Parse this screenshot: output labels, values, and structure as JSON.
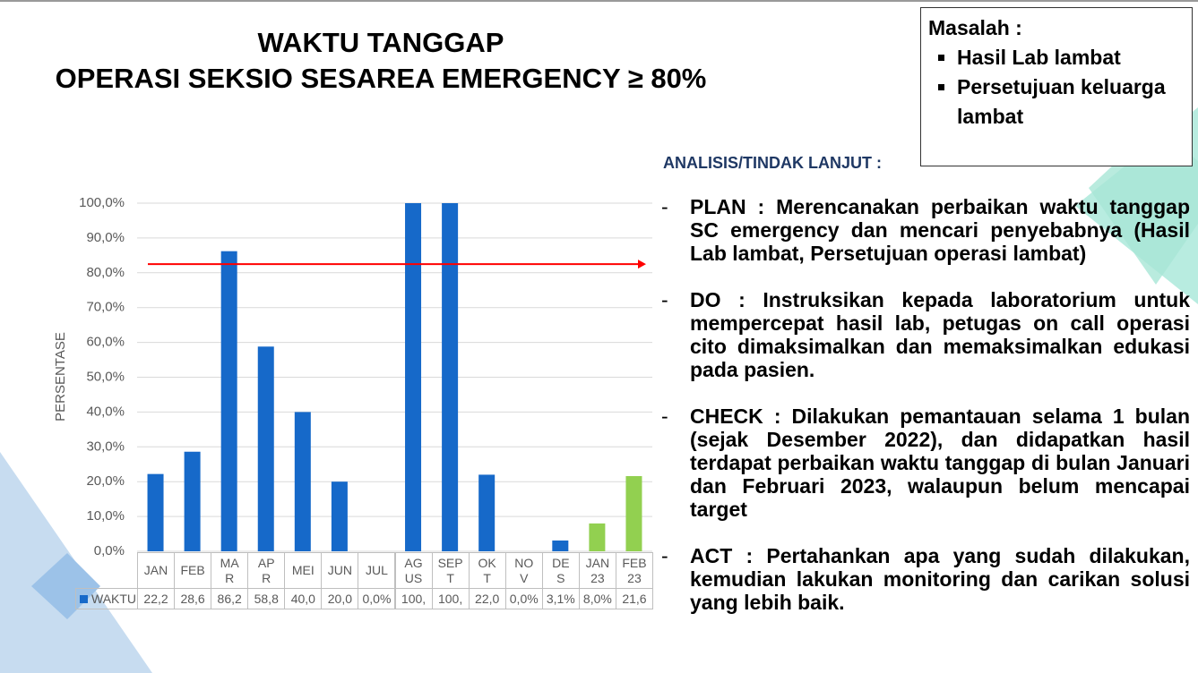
{
  "slide": {
    "title": [
      "WAKTU TANGGAP",
      "OPERASI SEKSIO SESAREA EMERGENCY ≥  80%"
    ],
    "problem": {
      "heading": "Masalah :",
      "items": [
        "Hasil Lab lambat",
        "Persetujuan keluarga lambat"
      ]
    },
    "analysis": {
      "heading": "ANALISIS/TINDAK LANJUT :",
      "items": [
        "PLAN : Merencanakan perbaikan waktu tanggap SC emergency dan mencari penyebabnya (Hasil Lab lambat, Persetujuan operasi lambat)",
        "DO : Instruksikan kepada laboratorium untuk mempercepat hasil lab, petugas on call operasi cito dimaksimalkan dan memaksimalkan edukasi pada pasien.",
        "CHECK : Dilakukan pemantauan selama 1 bulan (sejak Desember 2022), dan didapatkan hasil terdapat perbaikan waktu tanggap di bulan Januari dan Februari 2023, walaupun belum mencapai target",
        "ACT : Pertahankan apa yang sudah dilakukan, kemudian lakukan monitoring dan carikan solusi yang lebih baik."
      ]
    }
  },
  "chart_data": {
    "type": "bar",
    "y_label": "PERSENTASE",
    "categories": [
      "JAN",
      "FEB",
      "MAR",
      "APR",
      "MEI",
      "JUN",
      "JUL",
      "AGUS",
      "SEPT",
      "OKT",
      "NOV",
      "DES",
      "JAN 23",
      "FEB 23"
    ],
    "series": [
      {
        "name": "WAKTU",
        "color": "#1669c9",
        "point_colors": [
          "#1669c9",
          "#1669c9",
          "#1669c9",
          "#1669c9",
          "#1669c9",
          "#1669c9",
          "#1669c9",
          "#1669c9",
          "#1669c9",
          "#1669c9",
          "#1669c9",
          "#1669c9",
          "#92d050",
          "#92d050"
        ],
        "values": [
          22.2,
          28.6,
          86.2,
          58.8,
          40.0,
          20.0,
          0.0,
          100,
          100,
          22.0,
          0.0,
          3.1,
          8.0,
          21.6
        ],
        "value_labels": [
          "22,2",
          "28,6",
          "86,2",
          "58,8",
          "40,0",
          "20,0",
          "0,0%",
          "100,",
          "100,",
          "22,0",
          "0,0%",
          "3,1%",
          "8,0%",
          "21,6"
        ]
      }
    ],
    "ylim": [
      0,
      100
    ],
    "yticks": [
      {
        "value": 0,
        "label": "0,0%"
      },
      {
        "value": 10,
        "label": "10,0%"
      },
      {
        "value": 20,
        "label": "20,0%"
      },
      {
        "value": 30,
        "label": "30,0%"
      },
      {
        "value": 40,
        "label": "40,0%"
      },
      {
        "value": 50,
        "label": "50,0%"
      },
      {
        "value": 60,
        "label": "60,0%"
      },
      {
        "value": 70,
        "label": "70,0%"
      },
      {
        "value": 80,
        "label": "80,0%"
      },
      {
        "value": 90,
        "label": "90,0%"
      },
      {
        "value": 100,
        "label": "100,0%"
      }
    ],
    "grid": true,
    "target_line": {
      "value": 82.5,
      "color": "#ff0000"
    }
  }
}
